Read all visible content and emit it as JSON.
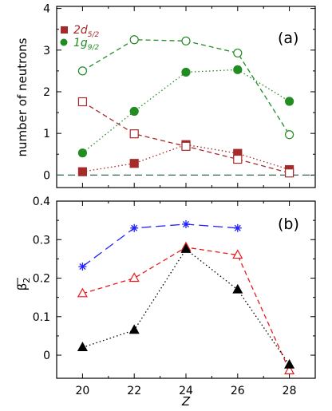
{
  "chart_data": [
    {
      "panel": "(a)",
      "type": "line",
      "ylabel": "number of neutrons",
      "ylim": [
        -0.3,
        4.05
      ],
      "xlim": [
        19,
        29
      ],
      "x": [
        20,
        22,
        24,
        26,
        28
      ],
      "yticks": [
        "0",
        "1",
        "2",
        "3",
        "4"
      ],
      "reference_line": {
        "y": 0,
        "style": "dashed",
        "color": "#336655"
      },
      "series": [
        {
          "name": "2d5/2",
          "legend_main": "2d",
          "legend_sub": "5/2",
          "color": "#a52a2a",
          "marker": "square",
          "filled": true,
          "line": "dotted",
          "values": [
            0.08,
            0.28,
            0.73,
            0.52,
            0.13
          ]
        },
        {
          "color": "#a52a2a",
          "marker": "square",
          "filled": false,
          "line": "dashed",
          "values": [
            1.76,
            0.99,
            0.69,
            0.38,
            0.05
          ]
        },
        {
          "name": "1g9/2",
          "legend_main": "1g",
          "legend_sub": "9/2",
          "color": "#228b22",
          "marker": "circle",
          "filled": true,
          "line": "dotted",
          "values": [
            0.53,
            1.53,
            2.47,
            2.53,
            1.77
          ]
        },
        {
          "color": "#228b22",
          "marker": "circle",
          "filled": false,
          "line": "dashed",
          "values": [
            2.5,
            3.25,
            3.22,
            2.93,
            0.97
          ]
        }
      ]
    },
    {
      "panel": "(b)",
      "type": "line",
      "ylabel_main": "β",
      "ylabel_sub": "2",
      "xlabel": "Z",
      "ylim": [
        -0.06,
        0.4
      ],
      "xlim": [
        19,
        29
      ],
      "xticks": [
        "20",
        "22",
        "24",
        "26",
        "28"
      ],
      "yticks": [
        "0",
        "0.1",
        "0.2",
        "0.3",
        "0.4"
      ],
      "series": [
        {
          "color": "#1f1fff",
          "marker": "asterisk",
          "line": "long-dash",
          "x": [
            20,
            22,
            24,
            26
          ],
          "values": [
            0.23,
            0.33,
            0.34,
            0.33
          ]
        },
        {
          "color": "#e8191c",
          "marker": "triangle-open",
          "line": "dashed",
          "x": [
            20,
            22,
            24,
            26,
            28
          ],
          "values": [
            0.16,
            0.2,
            0.28,
            0.26,
            -0.04
          ]
        },
        {
          "color": "#000000",
          "marker": "triangle-filled",
          "line": "dotted",
          "x": [
            20,
            22,
            24,
            26,
            28
          ],
          "values": [
            0.02,
            0.065,
            0.275,
            0.17,
            -0.025
          ]
        }
      ]
    }
  ]
}
